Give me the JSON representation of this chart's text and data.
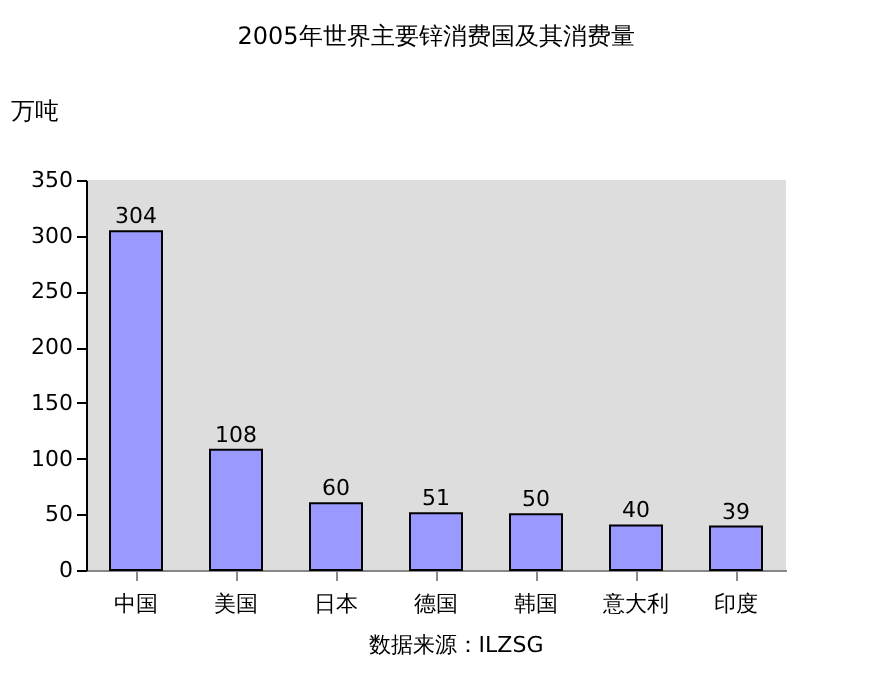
{
  "chart_data": {
    "type": "bar",
    "title": "2005年世界主要锌消费国及其消费量",
    "ylabel": "万吨",
    "categories": [
      "中国",
      "美国",
      "日本",
      "德国",
      "韩国",
      "意大利",
      "印度"
    ],
    "values": [
      304,
      108,
      60,
      51,
      50,
      40,
      39
    ],
    "color": "#9999ff",
    "ylim": [
      0,
      350
    ],
    "yticks": [
      0,
      50,
      100,
      150,
      200,
      250,
      300,
      350
    ],
    "data_labels": true,
    "grid": false,
    "annotations": [
      "数据来源：ILZSG"
    ]
  }
}
